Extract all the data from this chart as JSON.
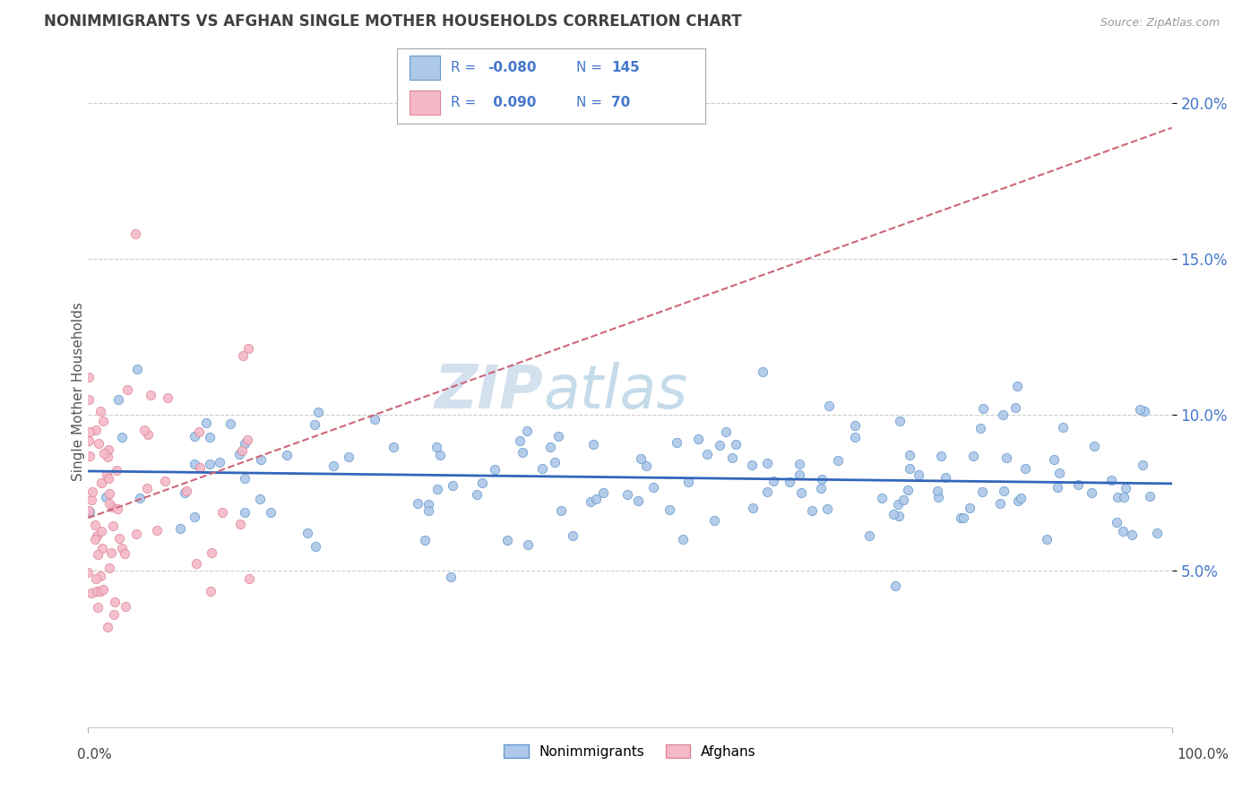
{
  "title": "NONIMMIGRANTS VS AFGHAN SINGLE MOTHER HOUSEHOLDS CORRELATION CHART",
  "source": "Source: ZipAtlas.com",
  "ylabel": "Single Mother Households",
  "legend_nonimmigrants": {
    "R": "-0.080",
    "N": "145"
  },
  "legend_afghans": {
    "R": "0.090",
    "N": "70"
  },
  "watermark_zip": "ZIP",
  "watermark_atlas": "atlas",
  "xlim": [
    0,
    1
  ],
  "ylim": [
    0.0,
    0.215
  ],
  "yticks": [
    0.05,
    0.1,
    0.15,
    0.2
  ],
  "ytick_labels": [
    "5.0%",
    "10.0%",
    "15.0%",
    "20.0%"
  ],
  "nonimm_color": "#adc8e8",
  "nonimm_edge_color": "#6699cc",
  "nonimm_line_color": "#3366bb",
  "afghan_color": "#f5b8c8",
  "afghan_edge_color": "#dd8899",
  "afghan_line_color": "#cc6677",
  "background_color": "#ffffff",
  "grid_color": "#cccccc",
  "title_color": "#404040",
  "source_color": "#999999",
  "legend_border_color": "#aaaaaa",
  "legend_text_color": "#4477cc",
  "legend_bg": "#ffffff",
  "nonimm_line_intercept": 0.082,
  "nonimm_line_slope": -0.004,
  "afghan_line_intercept": 0.067,
  "afghan_line_slope": 0.125
}
